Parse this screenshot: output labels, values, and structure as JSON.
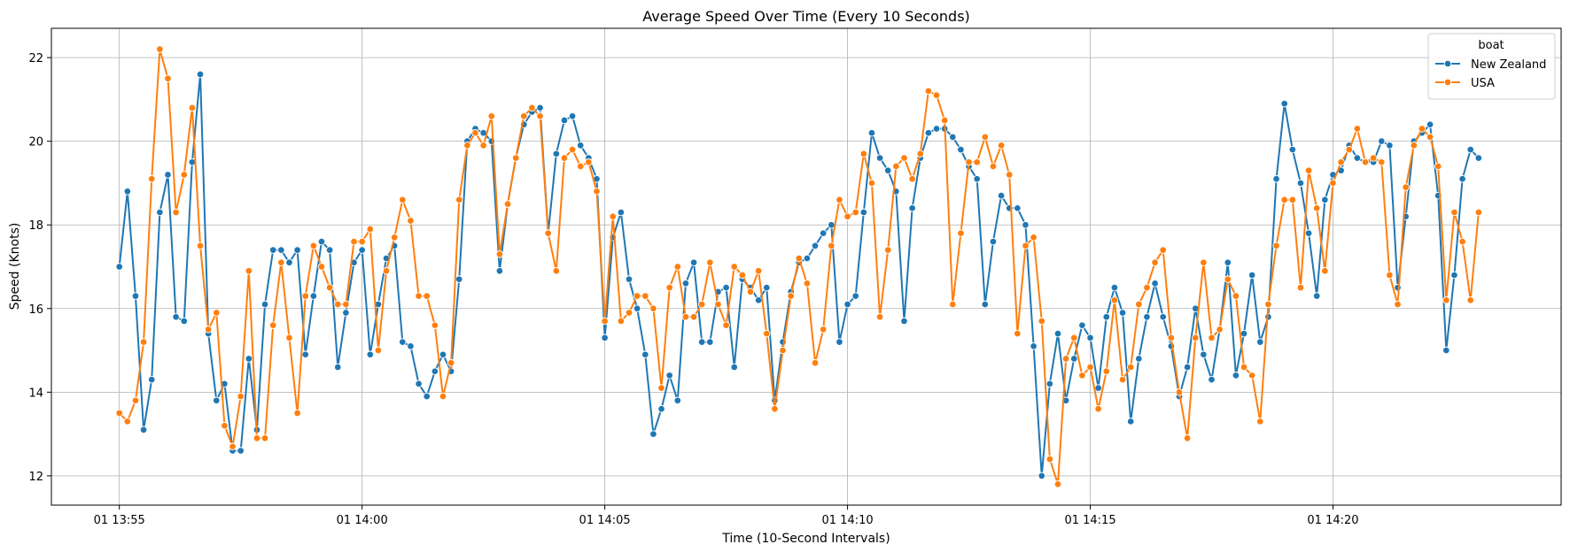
{
  "chart_data": {
    "type": "line",
    "title": "Average Speed Over Time (Every 10 Seconds)",
    "xlabel": "Time (10-Second Intervals)",
    "ylabel": "Speed (Knots)",
    "x_start": "2024-?-01 13:55:00",
    "x_tick_labels": [
      "01 13:55",
      "01 14:00",
      "01 14:05",
      "01 14:10",
      "01 14:15",
      "01 14:20"
    ],
    "x_ticks_minutes": [
      0,
      5,
      10,
      15,
      20,
      25
    ],
    "y_ticks": [
      12,
      14,
      16,
      18,
      20,
      22
    ],
    "ylim": [
      11.3,
      22.7
    ],
    "xlim_minutes": [
      -1.4,
      29.7
    ],
    "grid": true,
    "legend": {
      "title": "boat",
      "placement": "top-right"
    },
    "series": [
      {
        "name": "New Zealand",
        "color": "#1f77b4",
        "values": [
          17.0,
          18.8,
          16.3,
          13.1,
          14.3,
          18.3,
          19.2,
          15.8,
          15.7,
          19.5,
          21.6,
          15.4,
          13.8,
          14.2,
          12.6,
          12.6,
          14.8,
          13.1,
          16.1,
          17.4,
          17.4,
          17.1,
          17.4,
          14.9,
          16.3,
          17.6,
          17.4,
          14.6,
          15.9,
          17.1,
          17.4,
          14.9,
          16.1,
          17.2,
          17.5,
          15.2,
          15.1,
          14.2,
          13.9,
          14.5,
          14.9,
          14.5,
          16.7,
          20.0,
          20.3,
          20.2,
          20.0,
          16.9,
          18.5,
          19.6,
          20.4,
          20.7,
          20.8,
          17.8,
          19.7,
          20.5,
          20.6,
          19.9,
          19.6,
          19.1,
          15.3,
          17.7,
          18.3,
          16.7,
          16.0,
          14.9,
          13.0,
          13.6,
          14.4,
          13.8,
          16.6,
          17.1,
          15.2,
          15.2,
          16.4,
          16.5,
          14.6,
          16.7,
          16.5,
          16.2,
          16.5,
          13.8,
          15.2,
          16.4,
          17.1,
          17.2,
          17.5,
          17.8,
          18.0,
          15.2,
          16.1,
          16.3,
          18.3,
          20.2,
          19.6,
          19.3,
          18.8,
          15.7,
          18.4,
          19.6,
          20.2,
          20.3,
          20.3,
          20.1,
          19.8,
          19.4,
          19.1,
          16.1,
          17.6,
          18.7,
          18.4,
          18.4,
          18.0,
          15.1,
          12.0,
          14.2,
          15.4,
          13.8,
          14.8,
          15.6,
          15.3,
          14.1,
          15.8,
          16.5,
          15.9,
          13.3,
          14.8,
          15.8,
          16.6,
          15.8,
          15.1,
          13.9,
          14.6,
          16.0,
          14.9,
          14.3,
          15.5,
          17.1,
          14.4,
          15.4,
          16.8,
          15.2,
          15.8,
          19.1,
          20.9,
          19.8,
          19.0,
          17.8,
          16.3,
          18.6,
          19.2,
          19.3,
          19.9,
          19.6,
          19.5,
          19.5,
          20.0,
          19.9,
          16.5,
          18.2,
          20.0,
          20.2,
          20.4,
          18.7,
          15.0,
          16.8,
          19.1,
          19.8,
          19.6
        ]
      },
      {
        "name": "USA",
        "color": "#ff7f0e",
        "values": [
          13.5,
          13.3,
          13.8,
          15.2,
          19.1,
          22.2,
          21.5,
          18.3,
          19.2,
          20.8,
          17.5,
          15.5,
          15.9,
          13.2,
          12.7,
          13.9,
          16.9,
          12.9,
          12.9,
          15.6,
          17.1,
          15.3,
          13.5,
          16.3,
          17.5,
          17.0,
          16.5,
          16.1,
          16.1,
          17.6,
          17.6,
          17.9,
          15.0,
          16.9,
          17.7,
          18.6,
          18.1,
          16.3,
          16.3,
          15.6,
          13.9,
          14.7,
          18.6,
          19.9,
          20.2,
          19.9,
          20.6,
          17.3,
          18.5,
          19.6,
          20.6,
          20.8,
          20.6,
          17.8,
          16.9,
          19.6,
          19.8,
          19.4,
          19.5,
          18.8,
          15.7,
          18.2,
          15.7,
          15.9,
          16.3,
          16.3,
          16.0,
          14.1,
          16.5,
          17.0,
          15.8,
          15.8,
          16.1,
          17.1,
          16.1,
          15.6,
          17.0,
          16.8,
          16.4,
          16.9,
          15.4,
          13.6,
          15.0,
          16.3,
          17.2,
          16.6,
          14.7,
          15.5,
          17.5,
          18.6,
          18.2,
          18.3,
          19.7,
          19.0,
          15.8,
          17.4,
          19.4,
          19.6,
          19.1,
          19.7,
          21.2,
          21.1,
          20.5,
          16.1,
          17.8,
          19.5,
          19.5,
          20.1,
          19.4,
          19.9,
          19.2,
          15.4,
          17.5,
          17.7,
          15.7,
          12.4,
          11.8,
          14.8,
          15.3,
          14.4,
          14.6,
          13.6,
          14.5,
          16.2,
          14.3,
          14.6,
          16.1,
          16.5,
          17.1,
          17.4,
          15.3,
          14.0,
          12.9,
          15.3,
          17.1,
          15.3,
          15.5,
          16.7,
          16.3,
          14.6,
          14.4,
          13.3,
          16.1,
          17.5,
          18.6,
          18.6,
          16.5,
          19.3,
          18.4,
          16.9,
          19.0,
          19.5,
          19.8,
          20.3,
          19.5,
          19.6,
          19.5,
          16.8,
          16.1,
          18.9,
          19.9,
          20.3,
          20.1,
          19.4,
          16.2,
          18.3,
          17.6,
          16.2,
          18.3
        ]
      }
    ]
  }
}
